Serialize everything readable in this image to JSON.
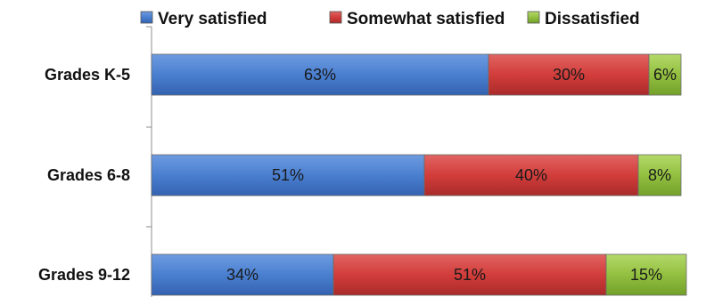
{
  "chart_data": {
    "type": "bar",
    "orientation": "horizontal",
    "stacked": true,
    "categories": [
      "Grades K-5",
      "Grades 6-8",
      "Grades 9-12"
    ],
    "series": [
      {
        "name": "Very satisfied",
        "values": [
          63,
          51,
          34
        ],
        "labels": [
          "63%",
          "51%",
          "34%"
        ],
        "color": "#4a7fd0"
      },
      {
        "name": "Somewhat satisfied",
        "values": [
          30,
          40,
          51
        ],
        "labels": [
          "30%",
          "40%",
          "51%"
        ],
        "color": "#d23d3b"
      },
      {
        "name": "Dissatisfied",
        "values": [
          6,
          8,
          15
        ],
        "labels": [
          "6%",
          "8%",
          "15%"
        ],
        "color": "#93c040"
      }
    ],
    "xlim": [
      0,
      100
    ],
    "legend_position": "top",
    "grid": false
  }
}
